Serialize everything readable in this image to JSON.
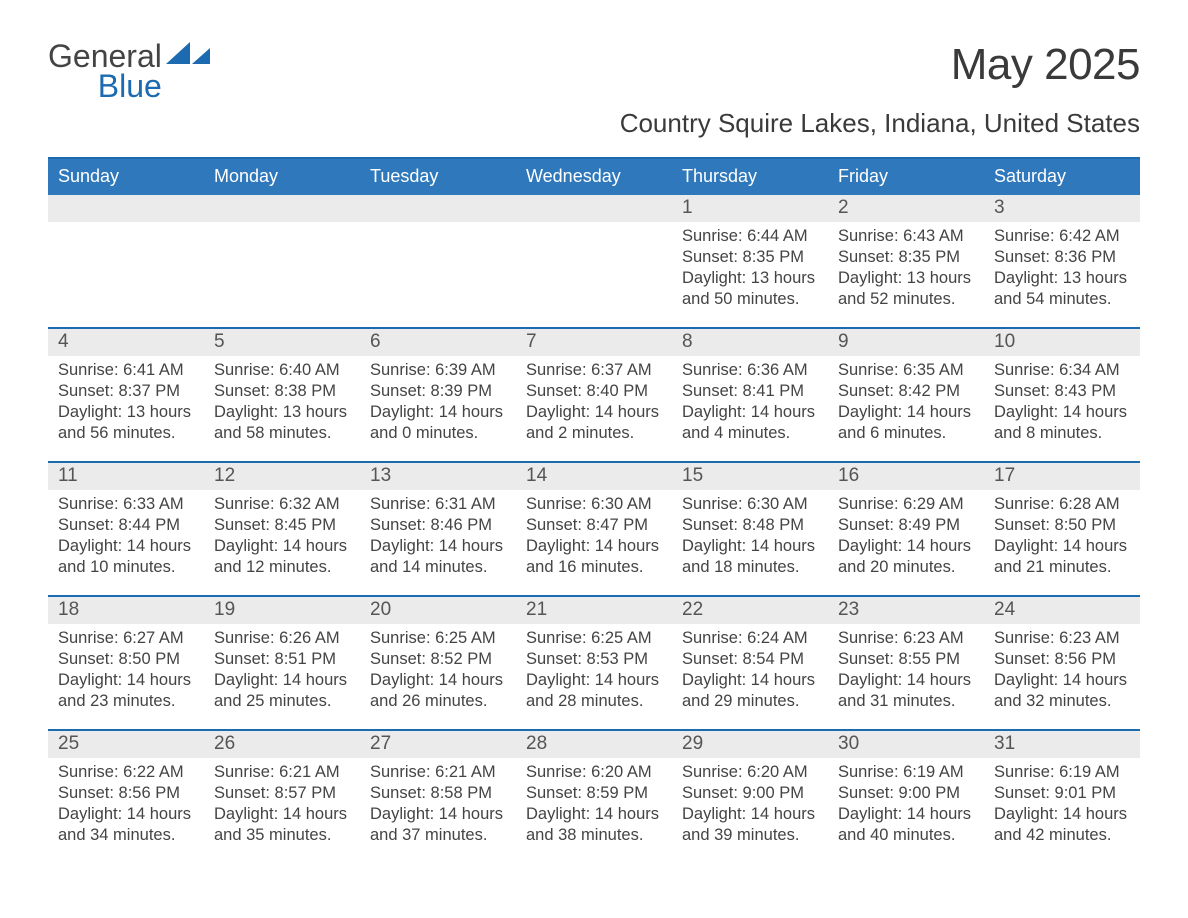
{
  "logo": {
    "text1": "General",
    "text2": "Blue",
    "accent": "#1c6bb0"
  },
  "title": "May 2025",
  "location": "Country Squire Lakes, Indiana, United States",
  "colors": {
    "header_bg": "#2e78bb",
    "accent_border": "#1c6bb0",
    "daynum_bg": "#ebebeb",
    "text": "#3a3a3a",
    "page_bg": "#ffffff"
  },
  "day_names": [
    "Sunday",
    "Monday",
    "Tuesday",
    "Wednesday",
    "Thursday",
    "Friday",
    "Saturday"
  ],
  "weeks": [
    [
      null,
      null,
      null,
      null,
      {
        "n": "1",
        "sunrise": "6:44 AM",
        "sunset": "8:35 PM",
        "dl": "13 hours and 50 minutes."
      },
      {
        "n": "2",
        "sunrise": "6:43 AM",
        "sunset": "8:35 PM",
        "dl": "13 hours and 52 minutes."
      },
      {
        "n": "3",
        "sunrise": "6:42 AM",
        "sunset": "8:36 PM",
        "dl": "13 hours and 54 minutes."
      }
    ],
    [
      {
        "n": "4",
        "sunrise": "6:41 AM",
        "sunset": "8:37 PM",
        "dl": "13 hours and 56 minutes."
      },
      {
        "n": "5",
        "sunrise": "6:40 AM",
        "sunset": "8:38 PM",
        "dl": "13 hours and 58 minutes."
      },
      {
        "n": "6",
        "sunrise": "6:39 AM",
        "sunset": "8:39 PM",
        "dl": "14 hours and 0 minutes."
      },
      {
        "n": "7",
        "sunrise": "6:37 AM",
        "sunset": "8:40 PM",
        "dl": "14 hours and 2 minutes."
      },
      {
        "n": "8",
        "sunrise": "6:36 AM",
        "sunset": "8:41 PM",
        "dl": "14 hours and 4 minutes."
      },
      {
        "n": "9",
        "sunrise": "6:35 AM",
        "sunset": "8:42 PM",
        "dl": "14 hours and 6 minutes."
      },
      {
        "n": "10",
        "sunrise": "6:34 AM",
        "sunset": "8:43 PM",
        "dl": "14 hours and 8 minutes."
      }
    ],
    [
      {
        "n": "11",
        "sunrise": "6:33 AM",
        "sunset": "8:44 PM",
        "dl": "14 hours and 10 minutes."
      },
      {
        "n": "12",
        "sunrise": "6:32 AM",
        "sunset": "8:45 PM",
        "dl": "14 hours and 12 minutes."
      },
      {
        "n": "13",
        "sunrise": "6:31 AM",
        "sunset": "8:46 PM",
        "dl": "14 hours and 14 minutes."
      },
      {
        "n": "14",
        "sunrise": "6:30 AM",
        "sunset": "8:47 PM",
        "dl": "14 hours and 16 minutes."
      },
      {
        "n": "15",
        "sunrise": "6:30 AM",
        "sunset": "8:48 PM",
        "dl": "14 hours and 18 minutes."
      },
      {
        "n": "16",
        "sunrise": "6:29 AM",
        "sunset": "8:49 PM",
        "dl": "14 hours and 20 minutes."
      },
      {
        "n": "17",
        "sunrise": "6:28 AM",
        "sunset": "8:50 PM",
        "dl": "14 hours and 21 minutes."
      }
    ],
    [
      {
        "n": "18",
        "sunrise": "6:27 AM",
        "sunset": "8:50 PM",
        "dl": "14 hours and 23 minutes."
      },
      {
        "n": "19",
        "sunrise": "6:26 AM",
        "sunset": "8:51 PM",
        "dl": "14 hours and 25 minutes."
      },
      {
        "n": "20",
        "sunrise": "6:25 AM",
        "sunset": "8:52 PM",
        "dl": "14 hours and 26 minutes."
      },
      {
        "n": "21",
        "sunrise": "6:25 AM",
        "sunset": "8:53 PM",
        "dl": "14 hours and 28 minutes."
      },
      {
        "n": "22",
        "sunrise": "6:24 AM",
        "sunset": "8:54 PM",
        "dl": "14 hours and 29 minutes."
      },
      {
        "n": "23",
        "sunrise": "6:23 AM",
        "sunset": "8:55 PM",
        "dl": "14 hours and 31 minutes."
      },
      {
        "n": "24",
        "sunrise": "6:23 AM",
        "sunset": "8:56 PM",
        "dl": "14 hours and 32 minutes."
      }
    ],
    [
      {
        "n": "25",
        "sunrise": "6:22 AM",
        "sunset": "8:56 PM",
        "dl": "14 hours and 34 minutes."
      },
      {
        "n": "26",
        "sunrise": "6:21 AM",
        "sunset": "8:57 PM",
        "dl": "14 hours and 35 minutes."
      },
      {
        "n": "27",
        "sunrise": "6:21 AM",
        "sunset": "8:58 PM",
        "dl": "14 hours and 37 minutes."
      },
      {
        "n": "28",
        "sunrise": "6:20 AM",
        "sunset": "8:59 PM",
        "dl": "14 hours and 38 minutes."
      },
      {
        "n": "29",
        "sunrise": "6:20 AM",
        "sunset": "9:00 PM",
        "dl": "14 hours and 39 minutes."
      },
      {
        "n": "30",
        "sunrise": "6:19 AM",
        "sunset": "9:00 PM",
        "dl": "14 hours and 40 minutes."
      },
      {
        "n": "31",
        "sunrise": "6:19 AM",
        "sunset": "9:01 PM",
        "dl": "14 hours and 42 minutes."
      }
    ]
  ],
  "labels": {
    "sunrise": "Sunrise:",
    "sunset": "Sunset:",
    "daylight": "Daylight:"
  }
}
